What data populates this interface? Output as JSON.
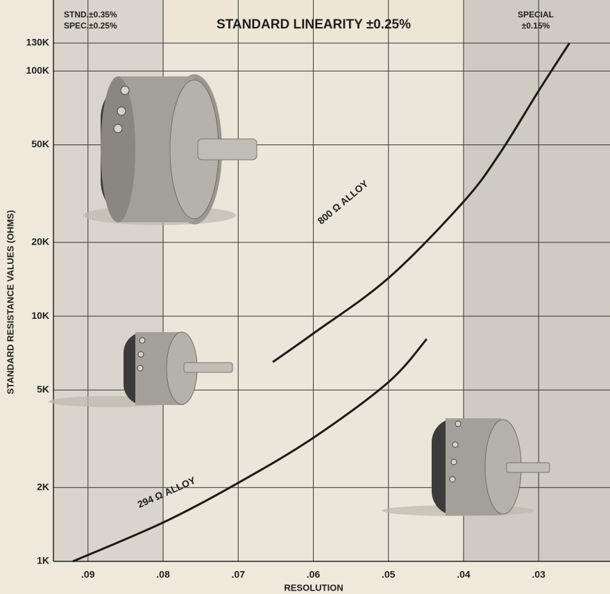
{
  "chart_data": {
    "type": "line",
    "title": "STANDARD LINEARITY ±0.25%",
    "annotations": [
      "STND.±0.35%",
      "SPEC.±0.25%",
      "SPECIAL",
      "±0.15%"
    ],
    "xlabel": "RESOLUTION",
    "ylabel": "STANDARD RESISTANCE VALUES (OHMS)",
    "xlim": [
      0.0946,
      0.0205
    ],
    "ylim": [
      1000,
      130000
    ],
    "log_y": true,
    "grid": true,
    "xticks": [
      {
        "value": 0.09,
        "label": ".09"
      },
      {
        "value": 0.08,
        "label": ".08"
      },
      {
        "value": 0.07,
        "label": ".07"
      },
      {
        "value": 0.06,
        "label": ".06"
      },
      {
        "value": 0.05,
        "label": ".05"
      },
      {
        "value": 0.04,
        "label": ".04"
      },
      {
        "value": 0.03,
        "label": ".03"
      }
    ],
    "yticks": [
      {
        "value": 1000,
        "label": "1K"
      },
      {
        "value": 2000,
        "label": "2K"
      },
      {
        "value": 5000,
        "label": "5K"
      },
      {
        "value": 10000,
        "label": "10K"
      },
      {
        "value": 20000,
        "label": "20K"
      },
      {
        "value": 50000,
        "label": "50K"
      },
      {
        "value": 100000,
        "label": "100K"
      },
      {
        "value": 130000,
        "label": "130K"
      }
    ],
    "series": [
      {
        "name": "800 Ω ALLOY",
        "color": "#1a1a1a",
        "x": [
          0.0654,
          0.06,
          0.05,
          0.04,
          0.0352,
          0.03,
          0.0259
        ],
        "values": [
          6500,
          8500,
          14300,
          29300,
          46000,
          83000,
          130000
        ]
      },
      {
        "name": "294 Ω ALLOY",
        "color": "#1a1a1a",
        "x": [
          0.092,
          0.08,
          0.07,
          0.06,
          0.05,
          0.0449
        ],
        "values": [
          1000,
          1440,
          2090,
          3190,
          5380,
          8070
        ]
      }
    ]
  }
}
